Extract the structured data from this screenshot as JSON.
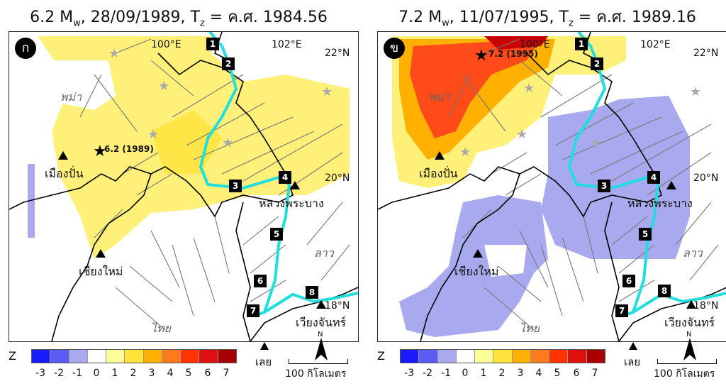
{
  "panels": [
    {
      "title": "6.2 M",
      "title_sub": "w",
      "title_rest": ", 28/09/1989, T",
      "title_sub2": "z",
      "title_end": " = ค.ศ. 1984.56",
      "letter": "ก",
      "eq_label": "6.2 (1989)",
      "legend_label": "Z"
    },
    {
      "title": "7.2 M",
      "title_sub": "w",
      "title_rest": ", 11/07/1995, T",
      "title_sub2": "z",
      "title_end": " = ค.ศ. 1989.16",
      "letter": "ข",
      "eq_label": "7.2 (1995)",
      "legend_label": "Z"
    }
  ],
  "map_labels": {
    "lon100": "100°E",
    "lon102": "102°E",
    "lat22": "22°N",
    "lat20": "20°N",
    "lat18": "18°N",
    "burma": "พม่า",
    "thai": "ไทย",
    "lao": "ลาว",
    "muang_pan": "เมืองปั่น",
    "chiang_mai": "เชียงใหม่",
    "luang_prabang": "หลวงพระบาง",
    "vientiane": "เวียงจันทร์",
    "loei": "เลย",
    "scale": "100 กิโลเมตร",
    "north": "N"
  },
  "river_points": [
    "1",
    "2",
    "3",
    "4",
    "5",
    "6",
    "7",
    "8"
  ],
  "legend": {
    "ticks": [
      "-3",
      "-2",
      "-1",
      "0",
      "1",
      "2",
      "3",
      "4",
      "5",
      "6",
      "7"
    ],
    "colors": [
      "#1a1aff",
      "#5c5cf5",
      "#a9a9f0",
      "#ffffff",
      "#ffff99",
      "#ffe23a",
      "#ffb000",
      "#ff7a1a",
      "#ff3300",
      "#e01010",
      "#a80000"
    ]
  }
}
